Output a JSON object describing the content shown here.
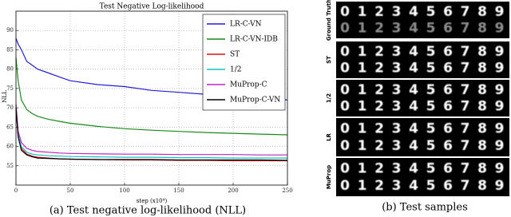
{
  "chart_data": {
    "type": "line",
    "title": "Test Negative Log-likelihood",
    "xlabel": "step (x10⁴)",
    "ylabel": "NLL",
    "x": [
      0,
      2,
      5,
      10,
      15,
      20,
      30,
      40,
      50,
      75,
      100,
      125,
      150,
      175,
      200,
      225,
      250
    ],
    "series": [
      {
        "name": "LR-C-VN",
        "color": "#1f1fd8",
        "values": [
          88,
          86.5,
          85,
          82,
          81,
          80,
          79,
          78,
          77,
          76,
          75.5,
          74.5,
          74,
          73.5,
          73,
          72.8,
          72
        ]
      },
      {
        "name": "LR-C-VN-IDB",
        "color": "#1a8a1a",
        "values": [
          83,
          77,
          72,
          69.5,
          68.5,
          67.8,
          67,
          66.5,
          66,
          65.2,
          64.6,
          64.2,
          63.9,
          63.6,
          63.4,
          63.2,
          63
        ]
      },
      {
        "name": "ST",
        "color": "#e01010",
        "values": [
          70,
          63,
          59.5,
          58,
          57.5,
          57.2,
          57,
          56.8,
          56.7,
          56.6,
          56.5,
          56.5,
          56.4,
          56.4,
          56.3,
          56.3,
          56.3
        ]
      },
      {
        "name": "1/2",
        "color": "#10c0c0",
        "values": [
          70,
          63,
          60,
          58.5,
          58,
          57.8,
          57.6,
          57.5,
          57.4,
          57.3,
          57.2,
          57.2,
          57.1,
          57.1,
          57,
          57,
          57
        ]
      },
      {
        "name": "MuProp-C",
        "color": "#c020c0",
        "values": [
          71,
          64,
          61,
          59.5,
          59,
          58.7,
          58.5,
          58.3,
          58.2,
          58.1,
          58,
          58,
          57.9,
          57.9,
          57.9,
          57.8,
          57.8
        ]
      },
      {
        "name": "MuProp-C-VN",
        "color": "#000000",
        "values": [
          70,
          62.5,
          59,
          57.8,
          57.3,
          57,
          56.9,
          56.8,
          56.7,
          56.6,
          56.6,
          56.6,
          56.5,
          56.5,
          56.5,
          56.5,
          56.4
        ]
      }
    ],
    "xlim": [
      0,
      250
    ],
    "xticks": [
      0,
      50,
      100,
      150,
      200,
      250
    ],
    "ylim": [
      50,
      95
    ],
    "yticks": [
      55,
      60,
      65,
      70,
      75,
      80,
      85,
      90
    ],
    "grid": true,
    "legend": "upper right"
  },
  "captions": {
    "left": "(a) Test negative log-likelihood (NLL)",
    "right": "(b) Test samples"
  },
  "samples": {
    "row_labels": [
      "Ground Truth",
      "ST",
      "1/2",
      "LR",
      "MuProp"
    ],
    "digits": [
      "0",
      "1",
      "2",
      "3",
      "4",
      "5",
      "6",
      "7",
      "8",
      "9"
    ]
  }
}
